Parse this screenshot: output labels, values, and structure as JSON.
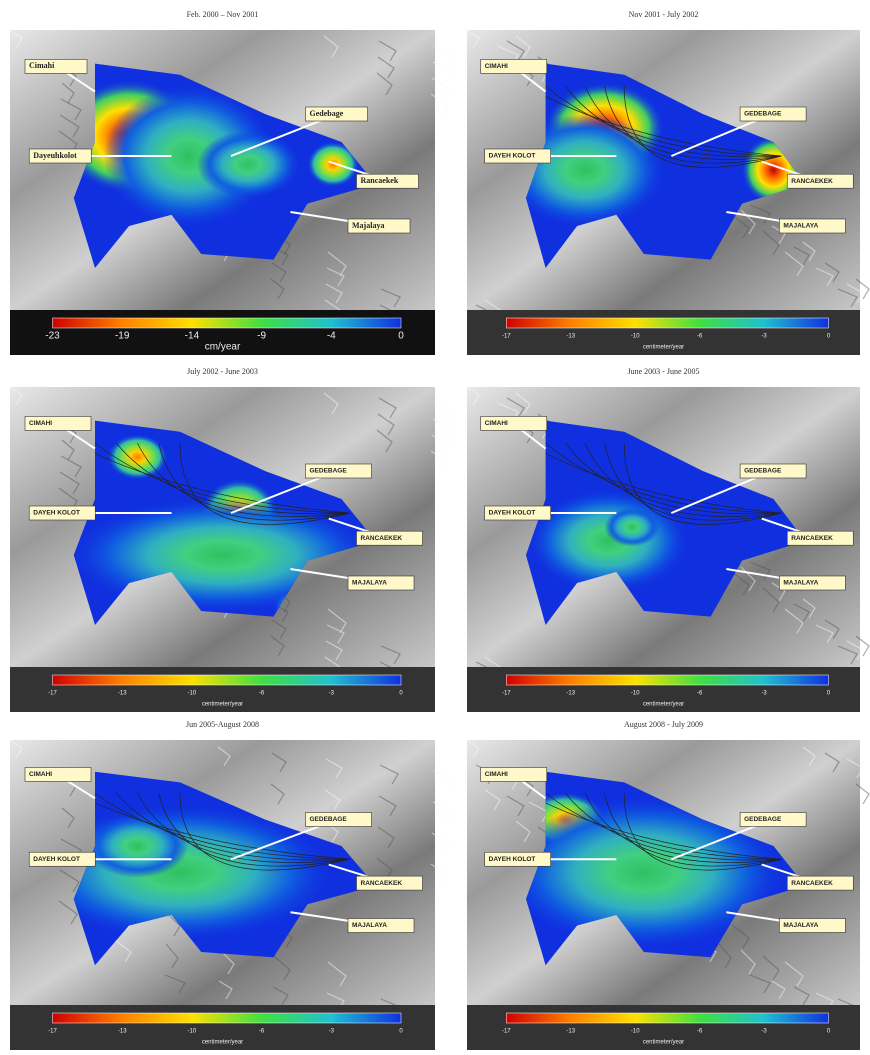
{
  "panels": [
    {
      "title": "Feb. 2000 – Nov 2001",
      "labels": [
        "Cimahi",
        "Gedebage",
        "Dayeuhkolot",
        "Rancaekek",
        "Majalaya"
      ],
      "colorbar_ticks": [
        "-23",
        "-19",
        "-14",
        "-9",
        "-4",
        "0"
      ],
      "colorbar_unit": "cm/year"
    },
    {
      "title": "Nov 2001 - July 2002",
      "labels": [
        "CIMAHI",
        "GEDEBAGE",
        "DAYEH KOLOT",
        "RANCAEKEK",
        "MAJALAYA"
      ],
      "colorbar_ticks": [
        "-17",
        "-13",
        "-10",
        "-6",
        "-3",
        "0"
      ],
      "colorbar_unit": "centimeter/year"
    },
    {
      "title": "July 2002 - June 2003",
      "labels": [
        "CIMAHI",
        "GEDEBAGE",
        "DAYEH KOLOT",
        "RANCAEKEK",
        "MAJALAYA"
      ],
      "colorbar_ticks": [
        "-17",
        "-13",
        "-10",
        "-6",
        "-3",
        "0"
      ],
      "colorbar_unit": "centimeter/year"
    },
    {
      "title": "June 2003 - June 2005",
      "labels": [
        "CIMAHI",
        "GEDEBAGE",
        "DAYEH KOLOT",
        "RANCAEKEK",
        "MAJALAYA"
      ],
      "colorbar_ticks": [
        "-17",
        "-13",
        "-10",
        "-6",
        "-3",
        "0"
      ],
      "colorbar_unit": "centimeter/year"
    },
    {
      "title": "Jun 2005-August 2008",
      "labels": [
        "CIMAHI",
        "GEDEBAGE",
        "DAYEH KOLOT",
        "RANCAEKEK",
        "MAJALAYA"
      ],
      "colorbar_ticks": [
        "-17",
        "-13",
        "-10",
        "-6",
        "-3",
        "0"
      ],
      "colorbar_unit": "centimeter/year"
    },
    {
      "title": "August 2008 - July 2009",
      "labels": [
        "CIMAHI",
        "GEDEBAGE",
        "DAYEH KOLOT",
        "RANCAEKEK",
        "MAJALAYA"
      ],
      "colorbar_ticks": [
        "-17",
        "-13",
        "-10",
        "-6",
        "-3",
        "0"
      ],
      "colorbar_unit": "centimeter/year"
    }
  ]
}
